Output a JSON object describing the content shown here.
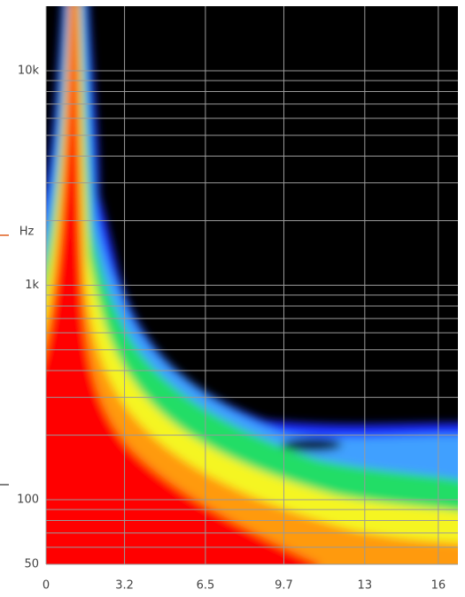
{
  "chart_data": {
    "type": "heatmap",
    "ylabel": "Hz",
    "xlim": [
      0,
      16.8
    ],
    "xticks": [
      0,
      3.2,
      6.5,
      9.7,
      13,
      16
    ],
    "ylim": [
      50,
      20000
    ],
    "log_y": true,
    "yticks": [
      50,
      100,
      {
        "value": 1000,
        "label": "1k"
      },
      {
        "value": 10000,
        "label": "10k"
      }
    ],
    "ygrid": [
      60,
      70,
      80,
      90,
      200,
      300,
      400,
      500,
      600,
      700,
      800,
      900,
      2000,
      3000,
      4000,
      5000,
      6000,
      7000,
      8000,
      9000
    ],
    "grid": true
  }
}
